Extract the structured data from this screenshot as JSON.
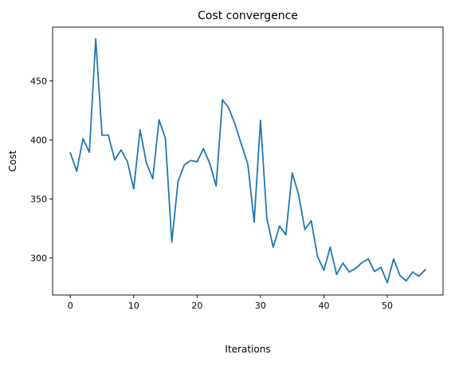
{
  "chart_data": {
    "type": "line",
    "title": "Cost convergence",
    "xlabel": "Iterations",
    "ylabel": "Cost",
    "xlim": [
      -2.8,
      58.8
    ],
    "ylim": [
      268.5,
      495.6
    ],
    "xticks": [
      0,
      10,
      20,
      30,
      40,
      50
    ],
    "yticks": [
      300,
      350,
      400,
      450
    ],
    "grid": false,
    "colors": {
      "line": "#1f77b4",
      "axes": "#000000"
    },
    "series": [
      {
        "x": [
          0,
          1,
          2,
          3,
          4,
          5,
          6,
          7,
          8,
          9,
          10,
          11,
          12,
          13,
          14,
          15,
          16,
          17,
          18,
          19,
          20,
          21,
          22,
          23,
          24,
          25,
          26,
          27,
          28,
          29,
          30,
          31,
          32,
          33,
          34,
          35,
          36,
          37,
          38,
          39,
          40,
          41,
          42,
          43,
          44,
          45,
          46,
          47,
          48,
          49,
          50,
          51,
          52,
          53,
          54,
          55,
          56
        ],
        "values": [
          389,
          373.5,
          401,
          389.5,
          485.5,
          404,
          404,
          383,
          391.5,
          381.5,
          358.5,
          408.5,
          380.5,
          367,
          417,
          401,
          313.5,
          365,
          379,
          382.5,
          381.5,
          392.5,
          380,
          361,
          434,
          427,
          413,
          396,
          379.5,
          330.5,
          416.5,
          333.5,
          309,
          327,
          319.5,
          372,
          354,
          324,
          331.5,
          301,
          289.5,
          309,
          286,
          295.5,
          288,
          291,
          296,
          299,
          288.5,
          292,
          279,
          299,
          285,
          280.5,
          288,
          284.5,
          290
        ]
      }
    ]
  }
}
